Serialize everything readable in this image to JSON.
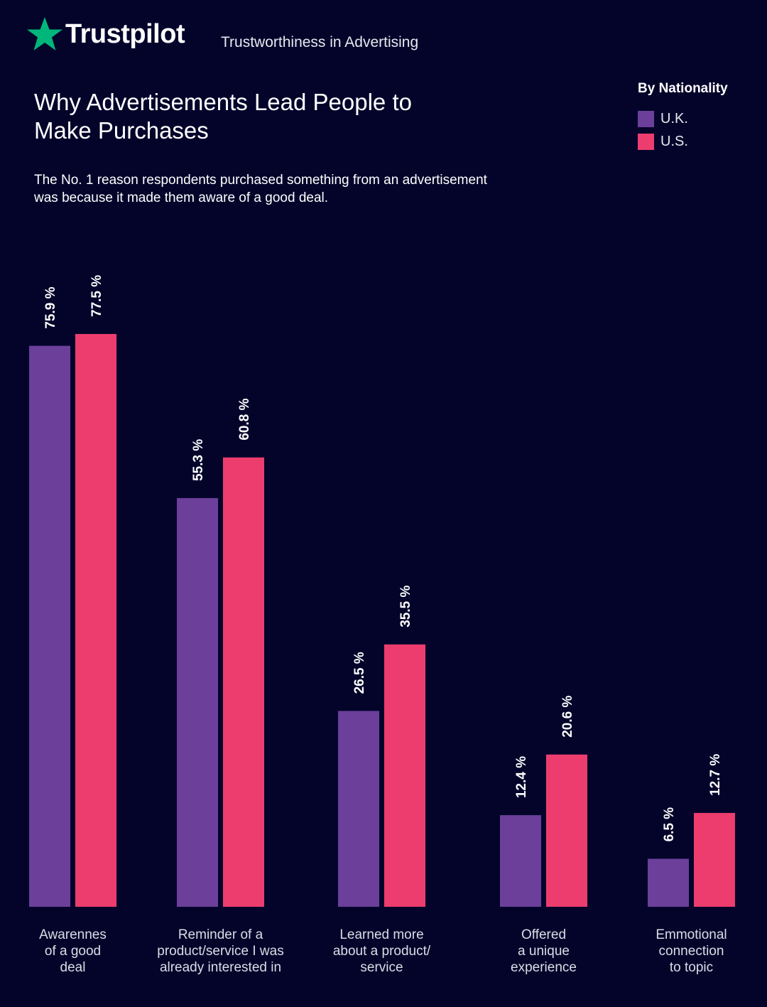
{
  "header": {
    "brand": "Trustpilot",
    "tagline": "Trustworthiness in Advertising"
  },
  "title": "Why Advertisements Lead People to Make Purchases",
  "subtitle": "The No. 1 reason respondents purchased something from an advertisement was because it made them aware of a good deal.",
  "colors": {
    "background": "#04042b",
    "uk": "#6b3f9a",
    "us": "#ec3d6e",
    "star": "#00b67a"
  },
  "legend": {
    "title": "By Nationality",
    "items": [
      {
        "label": "U.K.",
        "color": "#6b3f9a"
      },
      {
        "label": "U.S.",
        "color": "#ec3d6e"
      }
    ]
  },
  "chart_data": {
    "type": "bar",
    "categories": [
      "Awarennes\nof a good\ndeal",
      "Reminder of a\nproduct/service I was\nalready interested in",
      "Learned more\nabout a product/\nservice",
      "Offered\na unique\nexperience",
      "Emmotional\nconnection\nto topic"
    ],
    "series": [
      {
        "name": "U.K.",
        "values": [
          75.9,
          55.3,
          26.5,
          12.4,
          6.5
        ],
        "labels": [
          "75.9 %",
          "55.3 %",
          "26.5 %",
          "12.4 %",
          "6.5 %"
        ]
      },
      {
        "name": "U.S.",
        "values": [
          77.5,
          60.8,
          35.5,
          20.6,
          12.7
        ],
        "labels": [
          "77.5 %",
          "60.8 %",
          "35.5 %",
          "20.6 %",
          "12.7 %"
        ]
      }
    ],
    "grid": false,
    "legend_position": "top-right"
  }
}
